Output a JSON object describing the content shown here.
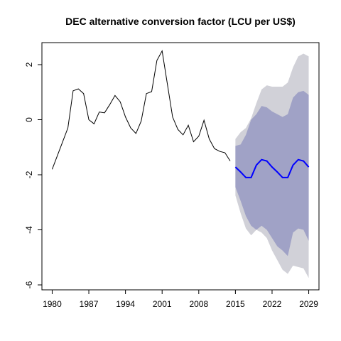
{
  "chart_data": {
    "type": "forecast",
    "title": "DEC alternative conversion factor (LCU per US$)",
    "xlim": [
      1978.04,
      2030.96
    ],
    "xticks": [
      1980,
      1987,
      1994,
      2001,
      2008,
      2015,
      2022,
      2029
    ],
    "ylim": [
      -6.18,
      2.8
    ],
    "yticks": [
      -6,
      -4,
      -2,
      0,
      2
    ],
    "series": [
      {
        "color": "#000000",
        "x": [
          1980,
          1981,
          1982,
          1983,
          1984,
          1985,
          1986,
          1987,
          1988,
          1989,
          1990,
          1991,
          1992,
          1993,
          1994,
          1995,
          1996,
          1997,
          1998,
          1999,
          2000,
          2001,
          2002,
          2003,
          2004,
          2005,
          2006,
          2007,
          2008,
          2009,
          2010,
          2011,
          2012,
          2013,
          2014
        ],
        "values": [
          -1.8,
          -1.3,
          -0.8,
          -0.3,
          1.05,
          1.12,
          0.95,
          0.0,
          -0.15,
          0.28,
          0.25,
          0.55,
          0.88,
          0.65,
          0.1,
          -0.3,
          -0.5,
          -0.05,
          0.95,
          1.02,
          2.15,
          2.5,
          1.3,
          0.1,
          -0.35,
          -0.55,
          -0.2,
          -0.8,
          -0.6,
          -0.02,
          -0.7,
          -1.05,
          -1.15,
          -1.2,
          -1.5
        ]
      },
      {
        "color": "#0000ff",
        "x": [
          2015,
          2016,
          2017,
          2018,
          2019,
          2020,
          2021,
          2022,
          2023,
          2024,
          2025,
          2026,
          2027,
          2028,
          2029
        ],
        "values": [
          -1.72,
          -1.9,
          -2.1,
          -2.1,
          -1.65,
          -1.45,
          -1.5,
          -1.72,
          -1.9,
          -2.1,
          -2.1,
          -1.65,
          -1.45,
          -1.5,
          -1.72
        ]
      }
    ],
    "bands": [
      {
        "color": "#d1d1d8",
        "x": [
          2015,
          2016,
          2017,
          2018,
          2019,
          2020,
          2021,
          2022,
          2023,
          2024,
          2025,
          2026,
          2027,
          2028,
          2029
        ],
        "upper": [
          -0.7,
          -0.45,
          -0.3,
          0.05,
          0.6,
          1.1,
          1.25,
          1.2,
          1.2,
          1.2,
          1.35,
          1.9,
          2.3,
          2.4,
          2.3
        ],
        "lower": [
          -2.75,
          -3.4,
          -3.95,
          -4.2,
          -4.0,
          -4.1,
          -4.3,
          -4.75,
          -5.1,
          -5.45,
          -5.6,
          -5.3,
          -5.35,
          -5.4,
          -5.75
        ]
      },
      {
        "color": "#a0a2c6",
        "x": [
          2015,
          2016,
          2017,
          2018,
          2019,
          2020,
          2021,
          2022,
          2023,
          2024,
          2025,
          2026,
          2027,
          2028,
          2029
        ],
        "upper": [
          -0.95,
          -0.9,
          -0.55,
          0.0,
          0.2,
          0.5,
          0.45,
          0.3,
          0.2,
          0.1,
          0.2,
          0.8,
          1.0,
          1.05,
          0.9
        ],
        "lower": [
          -2.45,
          -2.95,
          -3.5,
          -3.85,
          -4.0,
          -3.85,
          -4.0,
          -4.3,
          -4.6,
          -4.75,
          -4.95,
          -4.1,
          -3.95,
          -4.0,
          -4.4
        ]
      }
    ]
  }
}
